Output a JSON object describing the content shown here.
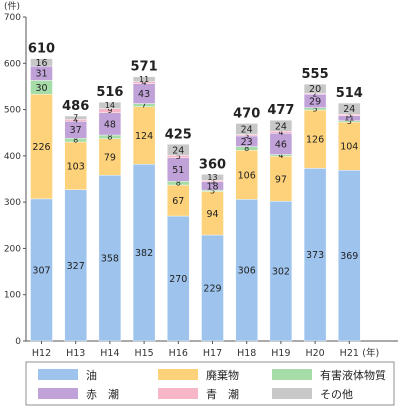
{
  "chart_data": {
    "type": "bar",
    "stacked": true,
    "unit_label": "(件)",
    "x_unit_suffix": "(年)",
    "categories": [
      "H12",
      "H13",
      "H14",
      "H15",
      "H16",
      "H17",
      "H18",
      "H19",
      "H20",
      "H21"
    ],
    "ylim": [
      0,
      700
    ],
    "yticks": [
      0,
      100,
      200,
      300,
      400,
      500,
      600,
      700
    ],
    "grid": false,
    "legend_position": "bottom",
    "totals": [
      610,
      486,
      516,
      571,
      425,
      360,
      470,
      477,
      555,
      514
    ],
    "series": [
      {
        "name": "油",
        "color": "#9ec4ee",
        "values": [
          307,
          327,
          358,
          382,
          270,
          229,
          306,
          302,
          373,
          369
        ]
      },
      {
        "name": "廃棄物",
        "color": "#fdd27a",
        "values": [
          226,
          103,
          79,
          124,
          67,
          94,
          106,
          97,
          126,
          104
        ]
      },
      {
        "name": "有害液体物質",
        "color": "#a6dca8",
        "values": [
          30,
          8,
          8,
          7,
          8,
          3,
          8,
          4,
          5,
          3
        ]
      },
      {
        "name": "赤　潮",
        "color": "#c0a2d8",
        "values": [
          31,
          37,
          48,
          43,
          51,
          18,
          23,
          46,
          29,
          11
        ]
      },
      {
        "name": "青　潮",
        "color": "#f7b6c8",
        "values": [
          0,
          4,
          9,
          4,
          5,
          3,
          3,
          4,
          2,
          3
        ]
      },
      {
        "name": "その他",
        "color": "#c8c8c8",
        "values": [
          16,
          7,
          14,
          11,
          24,
          13,
          24,
          24,
          20,
          24
        ]
      }
    ],
    "legend_order": [
      0,
      1,
      2,
      3,
      4,
      5
    ]
  }
}
